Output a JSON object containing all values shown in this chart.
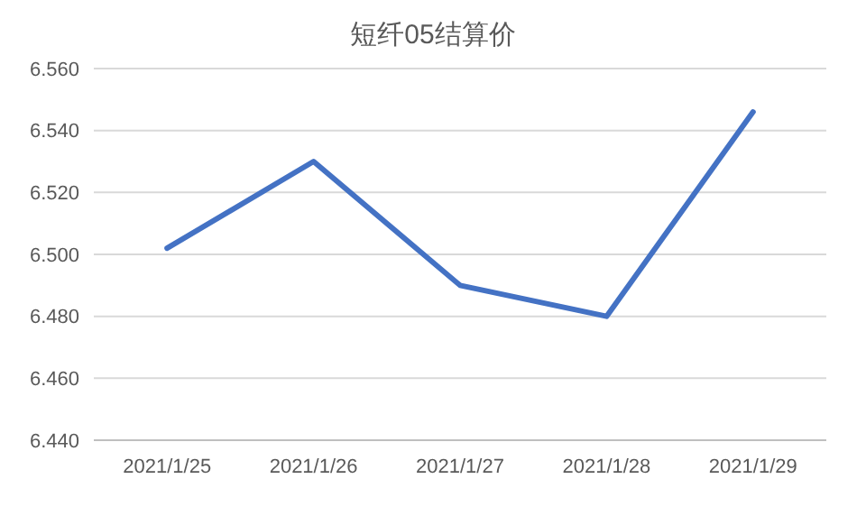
{
  "chart_data": {
    "type": "line",
    "title": "短纤05结算价",
    "categories": [
      "2021/1/25",
      "2021/1/26",
      "2021/1/27",
      "2021/1/28",
      "2021/1/29"
    ],
    "series": [
      {
        "color": "#4472c4",
        "values": [
          6.502,
          6.53,
          6.49,
          6.48,
          6.546
        ]
      }
    ],
    "ylim": [
      6.44,
      6.56
    ],
    "yticks": [
      {
        "value": 6.44,
        "label": "6.440"
      },
      {
        "value": 6.46,
        "label": "6.460"
      },
      {
        "value": 6.48,
        "label": "6.480"
      },
      {
        "value": 6.5,
        "label": "6.500"
      },
      {
        "value": 6.52,
        "label": "6.520"
      },
      {
        "value": 6.54,
        "label": "6.540"
      },
      {
        "value": 6.56,
        "label": "6.560"
      }
    ],
    "grid": "y",
    "marker": "none",
    "line_style": "solid"
  }
}
